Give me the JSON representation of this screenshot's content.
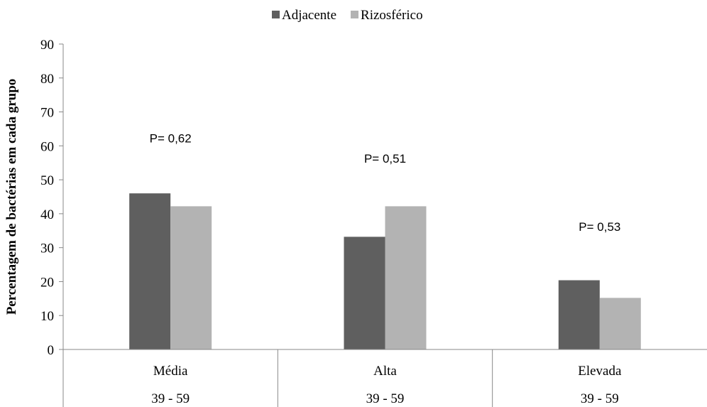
{
  "chart_data": {
    "type": "bar",
    "categories": [
      "Média",
      "Alta",
      "Elevada"
    ],
    "category_sublabels": [
      "39 - 59",
      "39 - 59",
      "39 - 59"
    ],
    "series": [
      {
        "name": "Adjacente",
        "values": [
          46,
          33.2,
          20.4
        ],
        "color": "#5f5f5f"
      },
      {
        "name": "Rizosférico",
        "values": [
          42.2,
          42.2,
          15.2
        ],
        "color": "#b3b3b3"
      }
    ],
    "annotations": [
      "P= 0,62",
      "P= 0,51",
      "P= 0,53"
    ],
    "annotation_values": [
      61,
      55,
      35
    ],
    "ylabel": "Percentagem de bactérias em cada grupo",
    "xlabel": "",
    "ylim": [
      0,
      90
    ],
    "yticks": [
      0,
      10,
      20,
      30,
      40,
      50,
      60,
      70,
      80,
      90
    ],
    "legend_position": "top-center",
    "grid": false
  }
}
